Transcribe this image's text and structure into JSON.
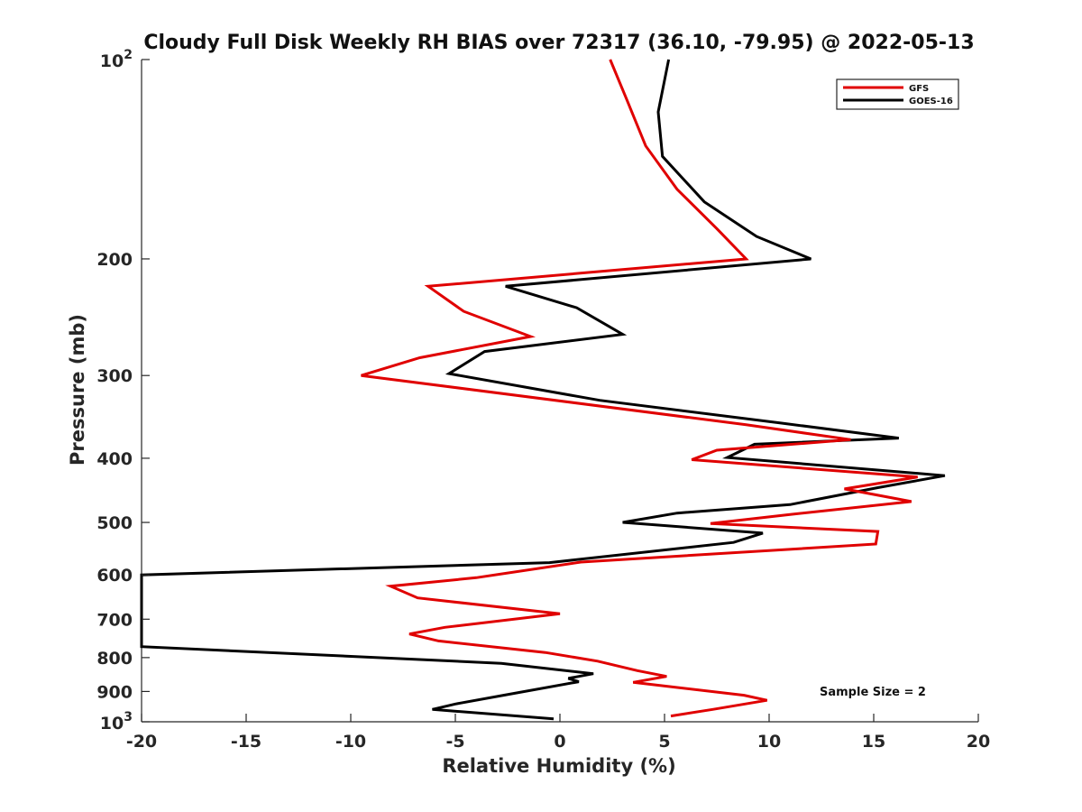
{
  "chart_data": {
    "type": "line",
    "title": "Cloudy Full Disk Weekly RH BIAS over 72317 (36.10, -79.95) @ 2022-05-13",
    "xlabel": "Relative Humidity (%)",
    "ylabel": "Pressure (mb)",
    "xlim": [
      -20,
      20
    ],
    "ylim": [
      100,
      1000
    ],
    "y_scale": "log",
    "y_reversed": true,
    "grid": false,
    "legend_position": "top-right",
    "x_ticks": [
      -20,
      -15,
      -10,
      -5,
      0,
      5,
      10,
      15,
      20
    ],
    "x_tick_labels": [
      "-20",
      "-15",
      "-10",
      "-5",
      "0",
      "5",
      "10",
      "15",
      "20"
    ],
    "y_ticks": [
      200,
      300,
      400,
      500,
      600,
      700,
      800,
      900
    ],
    "y_tick_labels": [
      "200",
      "300",
      "400",
      "500",
      "600",
      "700",
      "800",
      "900"
    ],
    "y_end_labels": [
      {
        "value": 100,
        "base": "10",
        "exp": "2"
      },
      {
        "value": 1000,
        "base": "10",
        "exp": "3"
      }
    ],
    "series": [
      {
        "name": "GFS",
        "color": "#e00000",
        "points": [
          [
            2.4,
            100
          ],
          [
            3.2,
            115
          ],
          [
            4.1,
            135
          ],
          [
            5.6,
            157
          ],
          [
            7.5,
            180
          ],
          [
            8.9,
            200
          ],
          [
            -6.3,
            220
          ],
          [
            -4.6,
            240
          ],
          [
            -1.4,
            262
          ],
          [
            -6.7,
            282
          ],
          [
            -9.5,
            300
          ],
          [
            8.9,
            356
          ],
          [
            13.9,
            375
          ],
          [
            7.5,
            389
          ],
          [
            6.3,
            402
          ],
          [
            17.1,
            427
          ],
          [
            13.6,
            445
          ],
          [
            16.8,
            465
          ],
          [
            11.1,
            486
          ],
          [
            7.2,
            502
          ],
          [
            15.2,
            516
          ],
          [
            15.1,
            539
          ],
          [
            1.0,
            574
          ],
          [
            -4.0,
            606
          ],
          [
            -8.1,
            624
          ],
          [
            -6.8,
            650
          ],
          [
            0.0,
            687
          ],
          [
            -5.5,
            720
          ],
          [
            -7.2,
            737
          ],
          [
            -5.8,
            755
          ],
          [
            -0.7,
            786
          ],
          [
            1.8,
            810
          ],
          [
            3.7,
            837
          ],
          [
            5.1,
            854
          ],
          [
            3.5,
            872
          ],
          [
            8.8,
            912
          ],
          [
            9.9,
            928
          ],
          [
            7.3,
            958
          ],
          [
            5.3,
            980
          ]
        ]
      },
      {
        "name": "GOES-16",
        "color": "#000000",
        "points": [
          [
            5.2,
            100
          ],
          [
            4.7,
            120
          ],
          [
            4.9,
            140
          ],
          [
            6.9,
            164
          ],
          [
            9.4,
            185
          ],
          [
            12.0,
            200
          ],
          [
            -2.6,
            220
          ],
          [
            0.8,
            237
          ],
          [
            3.0,
            260
          ],
          [
            -3.6,
            276
          ],
          [
            -5.3,
            298
          ],
          [
            1.9,
            327
          ],
          [
            10.6,
            354
          ],
          [
            16.2,
            373
          ],
          [
            9.3,
            381
          ],
          [
            8.0,
            399
          ],
          [
            18.4,
            425
          ],
          [
            15.2,
            443
          ],
          [
            11.0,
            470
          ],
          [
            5.6,
            484
          ],
          [
            3.0,
            500
          ],
          [
            9.7,
            519
          ],
          [
            8.3,
            536
          ],
          [
            -0.5,
            575
          ],
          [
            -20.0,
            600
          ],
          [
            -20.0,
            770
          ],
          [
            -2.8,
            816
          ],
          [
            1.6,
            846
          ],
          [
            0.4,
            860
          ],
          [
            0.9,
            870
          ],
          [
            -2.7,
            912
          ],
          [
            -5.0,
            940
          ],
          [
            -6.1,
            958
          ],
          [
            -0.3,
            990
          ]
        ]
      }
    ],
    "annotations": [
      "Sample Size = 2"
    ]
  }
}
